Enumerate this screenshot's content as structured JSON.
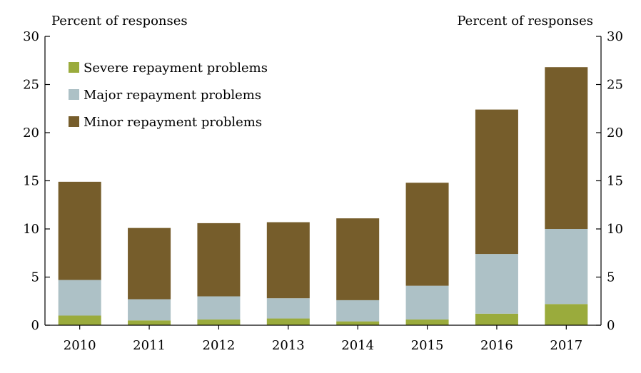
{
  "chart_data": {
    "type": "bar",
    "stacked": true,
    "left_axis_title": "Percent of responses",
    "right_axis_title": "Percent of responses",
    "categories": [
      "2010",
      "2011",
      "2012",
      "2013",
      "2014",
      "2015",
      "2016",
      "2017"
    ],
    "series": [
      {
        "name": "Severe repayment problems",
        "color": "#9aab3c",
        "values": [
          1.0,
          0.5,
          0.6,
          0.7,
          0.4,
          0.6,
          1.2,
          2.2
        ]
      },
      {
        "name": "Major repayment problems",
        "color": "#adc1c6",
        "values": [
          3.7,
          2.2,
          2.4,
          2.1,
          2.2,
          3.5,
          6.2,
          7.8
        ]
      },
      {
        "name": "Minor repayment problems",
        "color": "#765d2b",
        "values": [
          10.2,
          7.4,
          7.6,
          7.9,
          8.5,
          10.7,
          15.0,
          16.8
        ]
      }
    ],
    "ylim": [
      0,
      30
    ],
    "yticks": [
      0,
      5,
      10,
      15,
      20,
      25,
      30
    ],
    "legend_order": [
      0,
      1,
      2
    ],
    "legend_position": "top-left",
    "grid": false
  }
}
